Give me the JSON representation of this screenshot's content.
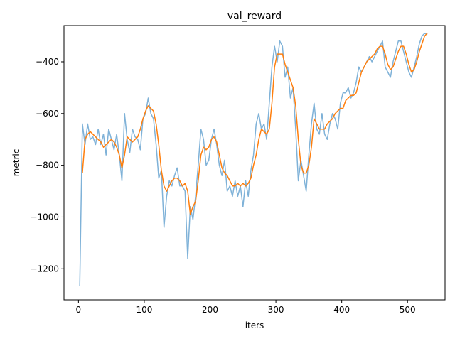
{
  "chart_data": {
    "type": "line",
    "title": "val_reward",
    "xlabel": "iters",
    "ylabel": "metric",
    "xlim": [
      -22,
      557
    ],
    "ylim": [
      -1320,
      -260
    ],
    "xticks": [
      0,
      100,
      200,
      300,
      400,
      500
    ],
    "yticks": [
      -1200,
      -1000,
      -800,
      -600,
      -400
    ],
    "grid": false,
    "legend": "none",
    "series": [
      {
        "color": "#7fb2d8",
        "x": [
          2,
          6,
          10,
          14,
          18,
          22,
          26,
          30,
          34,
          38,
          42,
          46,
          50,
          54,
          58,
          62,
          66,
          70,
          74,
          78,
          82,
          86,
          90,
          94,
          98,
          102,
          106,
          110,
          114,
          118,
          122,
          126,
          130,
          134,
          138,
          142,
          146,
          150,
          154,
          158,
          162,
          166,
          170,
          174,
          178,
          182,
          186,
          190,
          194,
          198,
          202,
          206,
          210,
          214,
          218,
          222,
          226,
          230,
          234,
          238,
          242,
          246,
          250,
          254,
          258,
          262,
          266,
          270,
          274,
          278,
          282,
          286,
          290,
          294,
          298,
          302,
          306,
          310,
          314,
          318,
          322,
          326,
          330,
          334,
          338,
          342,
          346,
          350,
          354,
          358,
          362,
          366,
          370,
          374,
          378,
          382,
          386,
          390,
          394,
          398,
          402,
          406,
          410,
          414,
          418,
          422,
          426,
          430,
          434,
          438,
          442,
          446,
          450,
          454,
          458,
          462,
          466,
          470,
          474,
          478,
          482,
          486,
          490,
          494,
          498,
          502,
          506,
          510,
          514,
          518,
          522,
          526,
          530
        ],
        "values": [
          -1265,
          -640,
          -720,
          -640,
          -700,
          -690,
          -720,
          -660,
          -720,
          -680,
          -760,
          -660,
          -700,
          -740,
          -680,
          -760,
          -860,
          -600,
          -700,
          -750,
          -660,
          -690,
          -700,
          -740,
          -620,
          -600,
          -540,
          -600,
          -620,
          -720,
          -850,
          -820,
          -1040,
          -920,
          -860,
          -880,
          -840,
          -810,
          -880,
          -880,
          -900,
          -1160,
          -960,
          -1010,
          -920,
          -800,
          -660,
          -700,
          -800,
          -780,
          -700,
          -660,
          -720,
          -800,
          -840,
          -780,
          -900,
          -880,
          -920,
          -860,
          -920,
          -880,
          -960,
          -860,
          -920,
          -820,
          -760,
          -640,
          -600,
          -660,
          -640,
          -700,
          -560,
          -420,
          -340,
          -400,
          -320,
          -340,
          -460,
          -420,
          -540,
          -500,
          -660,
          -860,
          -780,
          -840,
          -900,
          -760,
          -640,
          -560,
          -660,
          -680,
          -600,
          -680,
          -700,
          -640,
          -600,
          -620,
          -660,
          -560,
          -520,
          -520,
          -500,
          -540,
          -520,
          -480,
          -420,
          -440,
          -420,
          -400,
          -380,
          -400,
          -380,
          -360,
          -340,
          -320,
          -420,
          -440,
          -460,
          -400,
          -360,
          -320,
          -320,
          -360,
          -400,
          -440,
          -460,
          -420,
          -380,
          -330,
          -300,
          -290,
          -295
        ]
      },
      {
        "color": "#ff7f0e",
        "x": [
          6,
          10,
          14,
          18,
          22,
          26,
          30,
          34,
          38,
          42,
          46,
          50,
          54,
          58,
          62,
          66,
          70,
          74,
          78,
          82,
          86,
          90,
          94,
          98,
          102,
          106,
          110,
          114,
          118,
          122,
          126,
          130,
          134,
          138,
          142,
          146,
          150,
          154,
          158,
          162,
          166,
          170,
          174,
          178,
          182,
          186,
          190,
          194,
          198,
          202,
          206,
          210,
          214,
          218,
          222,
          226,
          230,
          234,
          238,
          242,
          246,
          250,
          254,
          258,
          262,
          266,
          270,
          274,
          278,
          282,
          286,
          290,
          294,
          298,
          302,
          306,
          310,
          314,
          318,
          322,
          326,
          330,
          334,
          338,
          342,
          346,
          350,
          354,
          358,
          362,
          366,
          370,
          374,
          378,
          382,
          386,
          390,
          394,
          398,
          402,
          406,
          410,
          414,
          418,
          422,
          426,
          430,
          434,
          438,
          442,
          446,
          450,
          454,
          458,
          462,
          466,
          470,
          474,
          478,
          482,
          486,
          490,
          494,
          498,
          502,
          506,
          510,
          514,
          518,
          522,
          526,
          530
        ],
        "values": [
          -830,
          -700,
          -680,
          -670,
          -680,
          -690,
          -700,
          -710,
          -730,
          -720,
          -710,
          -700,
          -710,
          -730,
          -760,
          -810,
          -760,
          -690,
          -700,
          -710,
          -700,
          -690,
          -660,
          -620,
          -590,
          -570,
          -580,
          -590,
          -640,
          -720,
          -820,
          -880,
          -900,
          -880,
          -860,
          -850,
          -850,
          -860,
          -880,
          -870,
          -900,
          -990,
          -960,
          -940,
          -860,
          -760,
          -730,
          -740,
          -730,
          -700,
          -690,
          -710,
          -760,
          -810,
          -830,
          -840,
          -860,
          -880,
          -880,
          -870,
          -880,
          -870,
          -880,
          -870,
          -850,
          -800,
          -760,
          -700,
          -660,
          -670,
          -680,
          -660,
          -560,
          -420,
          -370,
          -370,
          -370,
          -410,
          -440,
          -470,
          -500,
          -570,
          -700,
          -800,
          -830,
          -830,
          -800,
          -730,
          -620,
          -640,
          -660,
          -660,
          -660,
          -640,
          -630,
          -620,
          -600,
          -590,
          -580,
          -580,
          -550,
          -540,
          -530,
          -530,
          -520,
          -480,
          -440,
          -420,
          -400,
          -390,
          -380,
          -370,
          -350,
          -340,
          -340,
          -370,
          -410,
          -430,
          -420,
          -390,
          -360,
          -340,
          -340,
          -370,
          -410,
          -440,
          -430,
          -400,
          -360,
          -330,
          -300,
          -290
        ]
      }
    ]
  }
}
